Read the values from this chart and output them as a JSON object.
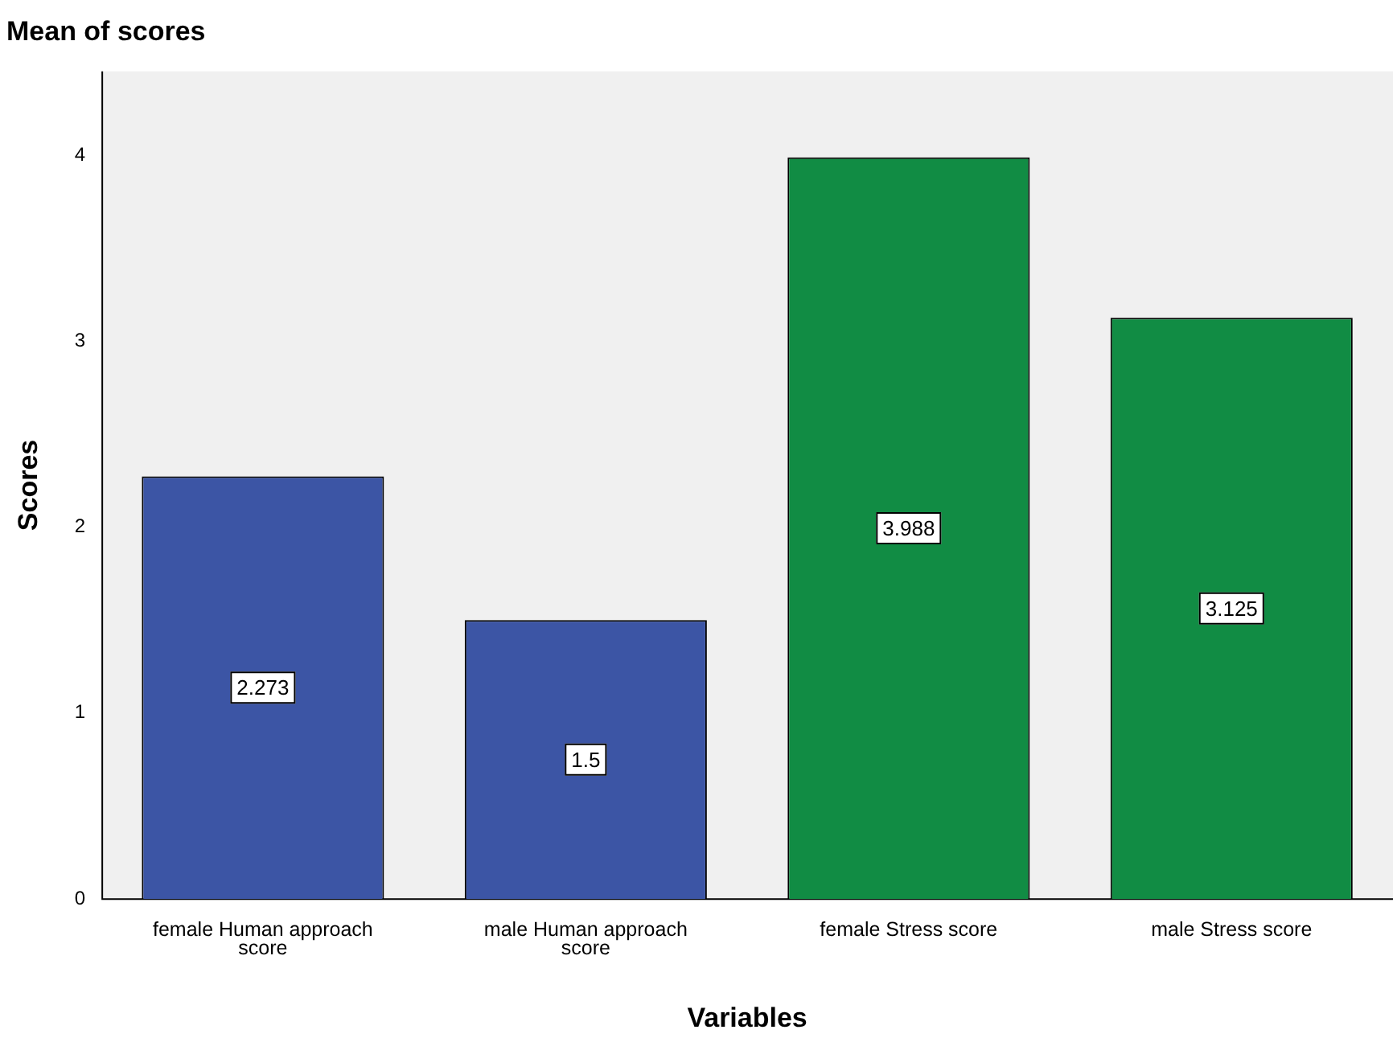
{
  "chart_data": {
    "type": "bar",
    "title": "Mean of scores",
    "xlabel": "Variables",
    "ylabel": "Scores",
    "categories": [
      "female Human approach score",
      "male Human approach score",
      "female Stress score",
      "male Stress score"
    ],
    "values": [
      2.273,
      1.5,
      3.988,
      3.125
    ],
    "colors": [
      "#3c55a5",
      "#3c55a5",
      "#118c44",
      "#118c44"
    ],
    "ylim": [
      0,
      4.45
    ],
    "yticks": [
      0,
      1,
      2,
      3,
      4
    ],
    "grid": false,
    "legend": false,
    "data_labels": true
  }
}
